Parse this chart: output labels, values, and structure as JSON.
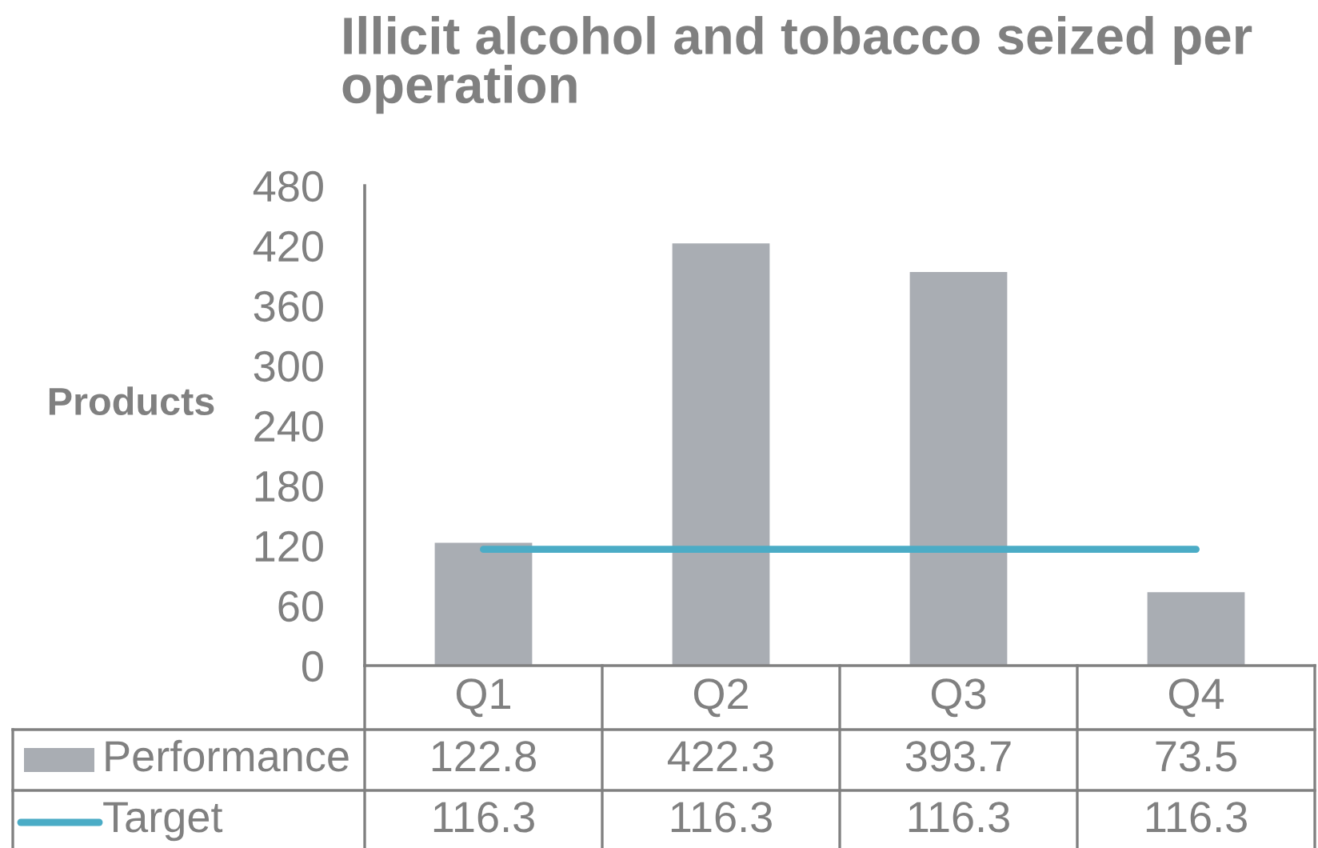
{
  "chart_data": {
    "type": "bar",
    "title": "Illicit alcohol and tobacco seized per operation",
    "ylabel": "Products",
    "categories": [
      "Q1",
      "Q2",
      "Q3",
      "Q4"
    ],
    "series": [
      {
        "name": "Performance",
        "color": "#a9adb3",
        "values": [
          122.8,
          422.3,
          393.7,
          73.5
        ]
      },
      {
        "name": "Target",
        "type": "line",
        "color": "#4bacc6",
        "values": [
          116.3,
          116.3,
          116.3,
          116.3
        ]
      }
    ],
    "ylim": [
      0,
      480
    ],
    "yticks": [
      0,
      60,
      120,
      180,
      240,
      300,
      360,
      420,
      480
    ],
    "data_labels": true,
    "legend": "bottom",
    "grid": false,
    "line_style": "solid"
  }
}
